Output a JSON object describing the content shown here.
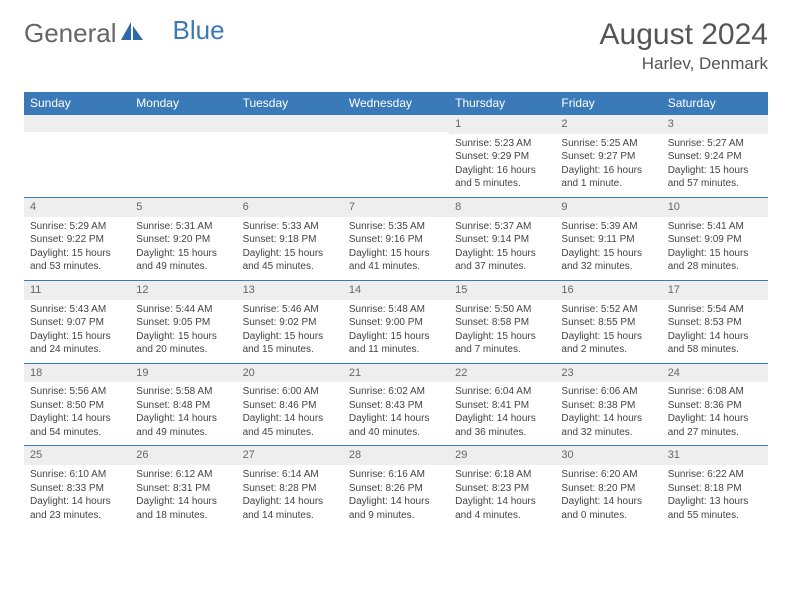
{
  "brand": {
    "part1": "General",
    "part2": "Blue"
  },
  "title": "August 2024",
  "location": "Harlev, Denmark",
  "colors": {
    "header_bg": "#3a7ab8",
    "header_text": "#ffffff",
    "day_head_bg": "#eeeeee",
    "day_head_border": "#3a7ab8",
    "text": "#444444",
    "page_bg": "#ffffff"
  },
  "fonts": {
    "title_size": 30,
    "location_size": 17,
    "th_size": 12,
    "cell_size": 10
  },
  "weekdays": [
    "Sunday",
    "Monday",
    "Tuesday",
    "Wednesday",
    "Thursday",
    "Friday",
    "Saturday"
  ],
  "weeks": [
    [
      null,
      null,
      null,
      null,
      {
        "n": "1",
        "sr": "Sunrise: 5:23 AM",
        "ss": "Sunset: 9:29 PM",
        "dl": "Daylight: 16 hours and 5 minutes."
      },
      {
        "n": "2",
        "sr": "Sunrise: 5:25 AM",
        "ss": "Sunset: 9:27 PM",
        "dl": "Daylight: 16 hours and 1 minute."
      },
      {
        "n": "3",
        "sr": "Sunrise: 5:27 AM",
        "ss": "Sunset: 9:24 PM",
        "dl": "Daylight: 15 hours and 57 minutes."
      }
    ],
    [
      {
        "n": "4",
        "sr": "Sunrise: 5:29 AM",
        "ss": "Sunset: 9:22 PM",
        "dl": "Daylight: 15 hours and 53 minutes."
      },
      {
        "n": "5",
        "sr": "Sunrise: 5:31 AM",
        "ss": "Sunset: 9:20 PM",
        "dl": "Daylight: 15 hours and 49 minutes."
      },
      {
        "n": "6",
        "sr": "Sunrise: 5:33 AM",
        "ss": "Sunset: 9:18 PM",
        "dl": "Daylight: 15 hours and 45 minutes."
      },
      {
        "n": "7",
        "sr": "Sunrise: 5:35 AM",
        "ss": "Sunset: 9:16 PM",
        "dl": "Daylight: 15 hours and 41 minutes."
      },
      {
        "n": "8",
        "sr": "Sunrise: 5:37 AM",
        "ss": "Sunset: 9:14 PM",
        "dl": "Daylight: 15 hours and 37 minutes."
      },
      {
        "n": "9",
        "sr": "Sunrise: 5:39 AM",
        "ss": "Sunset: 9:11 PM",
        "dl": "Daylight: 15 hours and 32 minutes."
      },
      {
        "n": "10",
        "sr": "Sunrise: 5:41 AM",
        "ss": "Sunset: 9:09 PM",
        "dl": "Daylight: 15 hours and 28 minutes."
      }
    ],
    [
      {
        "n": "11",
        "sr": "Sunrise: 5:43 AM",
        "ss": "Sunset: 9:07 PM",
        "dl": "Daylight: 15 hours and 24 minutes."
      },
      {
        "n": "12",
        "sr": "Sunrise: 5:44 AM",
        "ss": "Sunset: 9:05 PM",
        "dl": "Daylight: 15 hours and 20 minutes."
      },
      {
        "n": "13",
        "sr": "Sunrise: 5:46 AM",
        "ss": "Sunset: 9:02 PM",
        "dl": "Daylight: 15 hours and 15 minutes."
      },
      {
        "n": "14",
        "sr": "Sunrise: 5:48 AM",
        "ss": "Sunset: 9:00 PM",
        "dl": "Daylight: 15 hours and 11 minutes."
      },
      {
        "n": "15",
        "sr": "Sunrise: 5:50 AM",
        "ss": "Sunset: 8:58 PM",
        "dl": "Daylight: 15 hours and 7 minutes."
      },
      {
        "n": "16",
        "sr": "Sunrise: 5:52 AM",
        "ss": "Sunset: 8:55 PM",
        "dl": "Daylight: 15 hours and 2 minutes."
      },
      {
        "n": "17",
        "sr": "Sunrise: 5:54 AM",
        "ss": "Sunset: 8:53 PM",
        "dl": "Daylight: 14 hours and 58 minutes."
      }
    ],
    [
      {
        "n": "18",
        "sr": "Sunrise: 5:56 AM",
        "ss": "Sunset: 8:50 PM",
        "dl": "Daylight: 14 hours and 54 minutes."
      },
      {
        "n": "19",
        "sr": "Sunrise: 5:58 AM",
        "ss": "Sunset: 8:48 PM",
        "dl": "Daylight: 14 hours and 49 minutes."
      },
      {
        "n": "20",
        "sr": "Sunrise: 6:00 AM",
        "ss": "Sunset: 8:46 PM",
        "dl": "Daylight: 14 hours and 45 minutes."
      },
      {
        "n": "21",
        "sr": "Sunrise: 6:02 AM",
        "ss": "Sunset: 8:43 PM",
        "dl": "Daylight: 14 hours and 40 minutes."
      },
      {
        "n": "22",
        "sr": "Sunrise: 6:04 AM",
        "ss": "Sunset: 8:41 PM",
        "dl": "Daylight: 14 hours and 36 minutes."
      },
      {
        "n": "23",
        "sr": "Sunrise: 6:06 AM",
        "ss": "Sunset: 8:38 PM",
        "dl": "Daylight: 14 hours and 32 minutes."
      },
      {
        "n": "24",
        "sr": "Sunrise: 6:08 AM",
        "ss": "Sunset: 8:36 PM",
        "dl": "Daylight: 14 hours and 27 minutes."
      }
    ],
    [
      {
        "n": "25",
        "sr": "Sunrise: 6:10 AM",
        "ss": "Sunset: 8:33 PM",
        "dl": "Daylight: 14 hours and 23 minutes."
      },
      {
        "n": "26",
        "sr": "Sunrise: 6:12 AM",
        "ss": "Sunset: 8:31 PM",
        "dl": "Daylight: 14 hours and 18 minutes."
      },
      {
        "n": "27",
        "sr": "Sunrise: 6:14 AM",
        "ss": "Sunset: 8:28 PM",
        "dl": "Daylight: 14 hours and 14 minutes."
      },
      {
        "n": "28",
        "sr": "Sunrise: 6:16 AM",
        "ss": "Sunset: 8:26 PM",
        "dl": "Daylight: 14 hours and 9 minutes."
      },
      {
        "n": "29",
        "sr": "Sunrise: 6:18 AM",
        "ss": "Sunset: 8:23 PM",
        "dl": "Daylight: 14 hours and 4 minutes."
      },
      {
        "n": "30",
        "sr": "Sunrise: 6:20 AM",
        "ss": "Sunset: 8:20 PM",
        "dl": "Daylight: 14 hours and 0 minutes."
      },
      {
        "n": "31",
        "sr": "Sunrise: 6:22 AM",
        "ss": "Sunset: 8:18 PM",
        "dl": "Daylight: 13 hours and 55 minutes."
      }
    ]
  ]
}
